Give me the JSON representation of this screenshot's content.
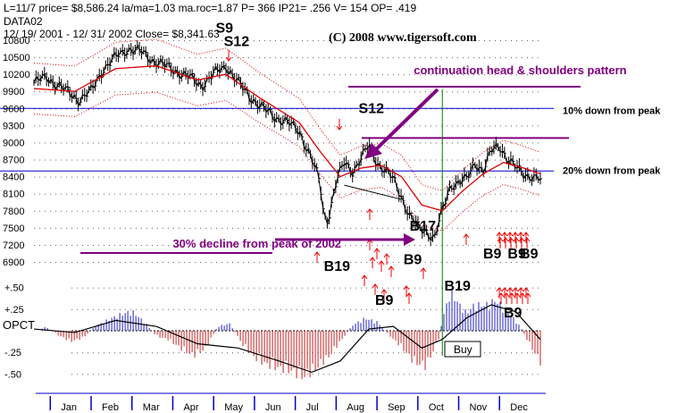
{
  "header": {
    "line1": "L=11/7  price= $8,586.24  la/ma=1.03  ma.roc=1.87 P=   366 IP21= .256 V= 154 OP= .419",
    "line2": "DATA02",
    "line3": "12/ 19/ 2001  -  12/ 31/ 2002    Close= $8,341.63",
    "copyright": "(C) 2008 www.tigersoft.com"
  },
  "colors": {
    "price": "#000000",
    "ma": "#dd0000",
    "band": "#dd0000",
    "hline": "#0000cc",
    "purple": "#800080",
    "green": "#008000",
    "opct_pos": "#2020c0",
    "opct_neg": "#c02020",
    "signal": "#ee0000",
    "axis_blue": "#0000cc"
  },
  "chart_data": {
    "type": "line",
    "title": "",
    "y_ticks": [
      10800,
      10500,
      10200,
      9900,
      9600,
      9300,
      9000,
      8700,
      8400,
      8100,
      7800,
      7500,
      7200,
      6900
    ],
    "ylim": [
      6900,
      10800
    ],
    "months": [
      "Jan",
      "Feb",
      "Mar",
      "Apr",
      "May",
      "Jun",
      "Jul",
      "Aug",
      "Sep",
      "Oct",
      "Nov",
      "Dec"
    ],
    "price_close": [
      [
        0.0,
        10050
      ],
      [
        0.3,
        10150
      ],
      [
        0.6,
        10000
      ],
      [
        0.9,
        9850
      ],
      [
        1.1,
        9750
      ],
      [
        1.4,
        9900
      ],
      [
        1.7,
        10300
      ],
      [
        2.0,
        10500
      ],
      [
        2.3,
        10650
      ],
      [
        2.6,
        10600
      ],
      [
        2.9,
        10450
      ],
      [
        3.2,
        10350
      ],
      [
        3.5,
        10250
      ],
      [
        3.8,
        10150
      ],
      [
        4.1,
        10000
      ],
      [
        4.4,
        10200
      ],
      [
        4.7,
        10350
      ],
      [
        5.0,
        10050
      ],
      [
        5.3,
        9800
      ],
      [
        5.6,
        9600
      ],
      [
        5.9,
        9450
      ],
      [
        6.2,
        9350
      ],
      [
        6.5,
        9200
      ],
      [
        6.8,
        8700
      ],
      [
        7.0,
        8300
      ],
      [
        7.1,
        7700
      ],
      [
        7.2,
        7650
      ],
      [
        7.4,
        8300
      ],
      [
        7.6,
        8650
      ],
      [
        7.8,
        8500
      ],
      [
        8.0,
        8700
      ],
      [
        8.2,
        8950
      ],
      [
        8.4,
        8650
      ],
      [
        8.6,
        8500
      ],
      [
        8.8,
        8350
      ],
      [
        9.0,
        8050
      ],
      [
        9.2,
        7700
      ],
      [
        9.4,
        7500
      ],
      [
        9.6,
        7450
      ],
      [
        9.8,
        7300
      ],
      [
        10.0,
        7800
      ],
      [
        10.2,
        8250
      ],
      [
        10.4,
        8300
      ],
      [
        10.6,
        8350
      ],
      [
        10.8,
        8650
      ],
      [
        11.0,
        8500
      ],
      [
        11.2,
        8850
      ],
      [
        11.4,
        8950
      ],
      [
        11.6,
        8700
      ],
      [
        11.8,
        8550
      ],
      [
        12.0,
        8450
      ],
      [
        12.2,
        8400
      ],
      [
        12.4,
        8340
      ]
    ],
    "moving_average": [
      [
        0.0,
        9950
      ],
      [
        1.0,
        9900
      ],
      [
        2.0,
        10300
      ],
      [
        3.0,
        10350
      ],
      [
        4.0,
        10100
      ],
      [
        4.7,
        10200
      ],
      [
        5.5,
        9800
      ],
      [
        6.5,
        9350
      ],
      [
        7.0,
        8850
      ],
      [
        7.5,
        8400
      ],
      [
        8.0,
        8550
      ],
      [
        8.5,
        8600
      ],
      [
        9.0,
        8400
      ],
      [
        9.5,
        7900
      ],
      [
        10.0,
        7800
      ],
      [
        10.5,
        8150
      ],
      [
        11.0,
        8450
      ],
      [
        11.5,
        8650
      ],
      [
        12.0,
        8550
      ],
      [
        12.4,
        8450
      ]
    ],
    "horizontal_lines": [
      {
        "y": 9600,
        "label": "10% down from peak"
      },
      {
        "y": 9080,
        "label": ""
      },
      {
        "y": 8500,
        "label": "20% down from peak"
      }
    ],
    "vertical_line_x": 10.0,
    "neckline": [
      [
        7.6,
        8250
      ],
      [
        9.0,
        8000
      ]
    ],
    "annotations": [
      {
        "text": "continuation head & shoulders pattern",
        "x": 9.3,
        "y": 10200
      },
      {
        "text": "30% decline from peak of 2002",
        "x": 3.4,
        "y": 7150
      },
      {
        "text": "S9",
        "x": 4.45,
        "y": 10930
      },
      {
        "text": "S12",
        "x": 4.65,
        "y": 10700
      },
      {
        "text": "S12",
        "x": 7.95,
        "y": 9520
      },
      {
        "text": "B17",
        "x": 9.2,
        "y": 7450
      },
      {
        "text": "B19",
        "x": 7.1,
        "y": 6740
      },
      {
        "text": "B9",
        "x": 9.05,
        "y": 6860
      },
      {
        "text": "B19",
        "x": 10.05,
        "y": 6400
      },
      {
        "text": "B9",
        "x": 11.0,
        "y": 6960
      },
      {
        "text": "B9",
        "x": 11.6,
        "y": 6960
      },
      {
        "text": "B9",
        "x": 11.9,
        "y": 6960
      }
    ],
    "opct": {
      "ylabel": "OPCT",
      "ticks": [
        {
          "v": 0.5,
          "label": "+.50"
        },
        {
          "v": 0.25,
          "label": "+.25"
        },
        {
          "v": -0.25,
          "label": "-.25"
        },
        {
          "v": -0.5,
          "label": "-.50"
        }
      ],
      "ylim": [
        -0.55,
        0.6
      ],
      "bars": [
        [
          0.0,
          0.02
        ],
        [
          0.3,
          0.04
        ],
        [
          0.6,
          -0.05
        ],
        [
          0.9,
          -0.12
        ],
        [
          1.2,
          -0.08
        ],
        [
          1.5,
          0.05
        ],
        [
          1.8,
          0.12
        ],
        [
          2.1,
          0.18
        ],
        [
          2.4,
          0.22
        ],
        [
          2.7,
          0.1
        ],
        [
          3.0,
          -0.06
        ],
        [
          3.3,
          -0.1
        ],
        [
          3.6,
          -0.2
        ],
        [
          3.9,
          -0.28
        ],
        [
          4.2,
          -0.2
        ],
        [
          4.5,
          0.05
        ],
        [
          4.8,
          0.08
        ],
        [
          5.1,
          -0.15
        ],
        [
          5.4,
          -0.3
        ],
        [
          5.7,
          -0.38
        ],
        [
          6.0,
          -0.42
        ],
        [
          6.3,
          -0.45
        ],
        [
          6.6,
          -0.52
        ],
        [
          6.9,
          -0.42
        ],
        [
          7.2,
          -0.3
        ],
        [
          7.5,
          -0.12
        ],
        [
          7.8,
          0.06
        ],
        [
          8.1,
          0.14
        ],
        [
          8.4,
          0.1
        ],
        [
          8.7,
          -0.05
        ],
        [
          9.0,
          -0.18
        ],
        [
          9.3,
          -0.35
        ],
        [
          9.6,
          -0.4
        ],
        [
          9.9,
          -0.1
        ],
        [
          10.0,
          0.12
        ],
        [
          10.2,
          0.45
        ],
        [
          10.4,
          0.3
        ],
        [
          10.6,
          0.2
        ],
        [
          10.8,
          0.3
        ],
        [
          11.0,
          0.28
        ],
        [
          11.3,
          0.34
        ],
        [
          11.6,
          0.22
        ],
        [
          11.9,
          0.05
        ],
        [
          12.2,
          -0.2
        ],
        [
          12.4,
          -0.35
        ]
      ],
      "line": [
        [
          0.0,
          0.02
        ],
        [
          1.0,
          -0.02
        ],
        [
          2.0,
          0.12
        ],
        [
          3.0,
          0.05
        ],
        [
          4.0,
          -0.15
        ],
        [
          5.0,
          -0.2
        ],
        [
          6.0,
          -0.35
        ],
        [
          6.8,
          -0.48
        ],
        [
          7.5,
          -0.35
        ],
        [
          8.2,
          0.02
        ],
        [
          8.8,
          0.05
        ],
        [
          9.5,
          -0.2
        ],
        [
          10.0,
          -0.1
        ],
        [
          10.6,
          0.15
        ],
        [
          11.2,
          0.3
        ],
        [
          11.8,
          0.22
        ],
        [
          12.4,
          -0.1
        ]
      ]
    },
    "buy_label": "Buy",
    "opct_b9_label": "B9"
  }
}
